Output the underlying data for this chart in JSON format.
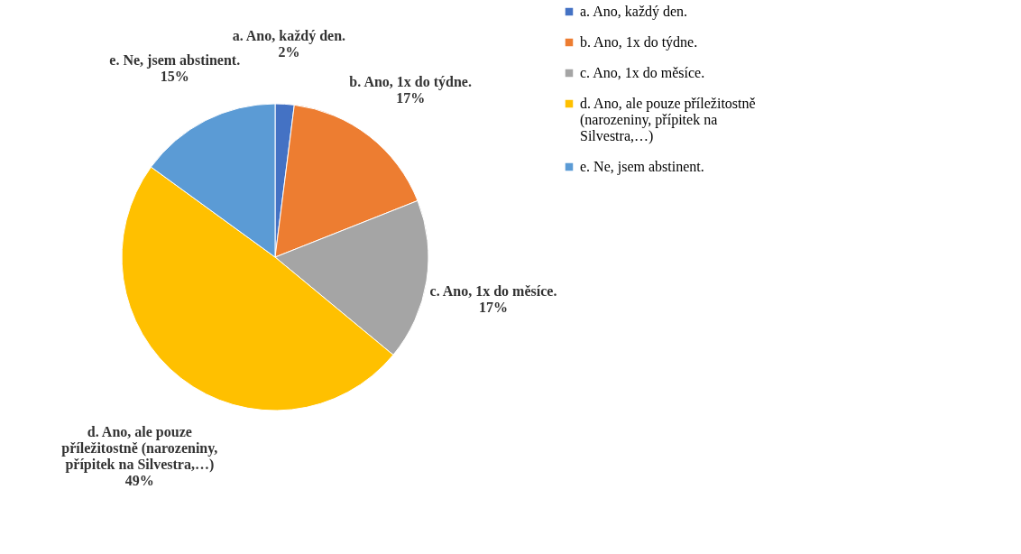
{
  "chart_data": {
    "type": "pie",
    "categories": [
      "a. Ano, každý den.",
      "b. Ano, 1x do týdne.",
      "c. Ano, 1x do měsíce.",
      "d. Ano, ale pouze příležitostně (narozeniny, přípitek na Silvestra,…)",
      "e. Ne, jsem abstinent."
    ],
    "values": [
      2,
      17,
      17,
      49,
      15
    ],
    "value_labels": [
      "2%",
      "17%",
      "17%",
      "49%",
      "15%"
    ],
    "colors": [
      "#4472c4",
      "#ed7d31",
      "#a5a5a5",
      "#ffc000",
      "#5b9bd5"
    ],
    "legend": "right"
  }
}
